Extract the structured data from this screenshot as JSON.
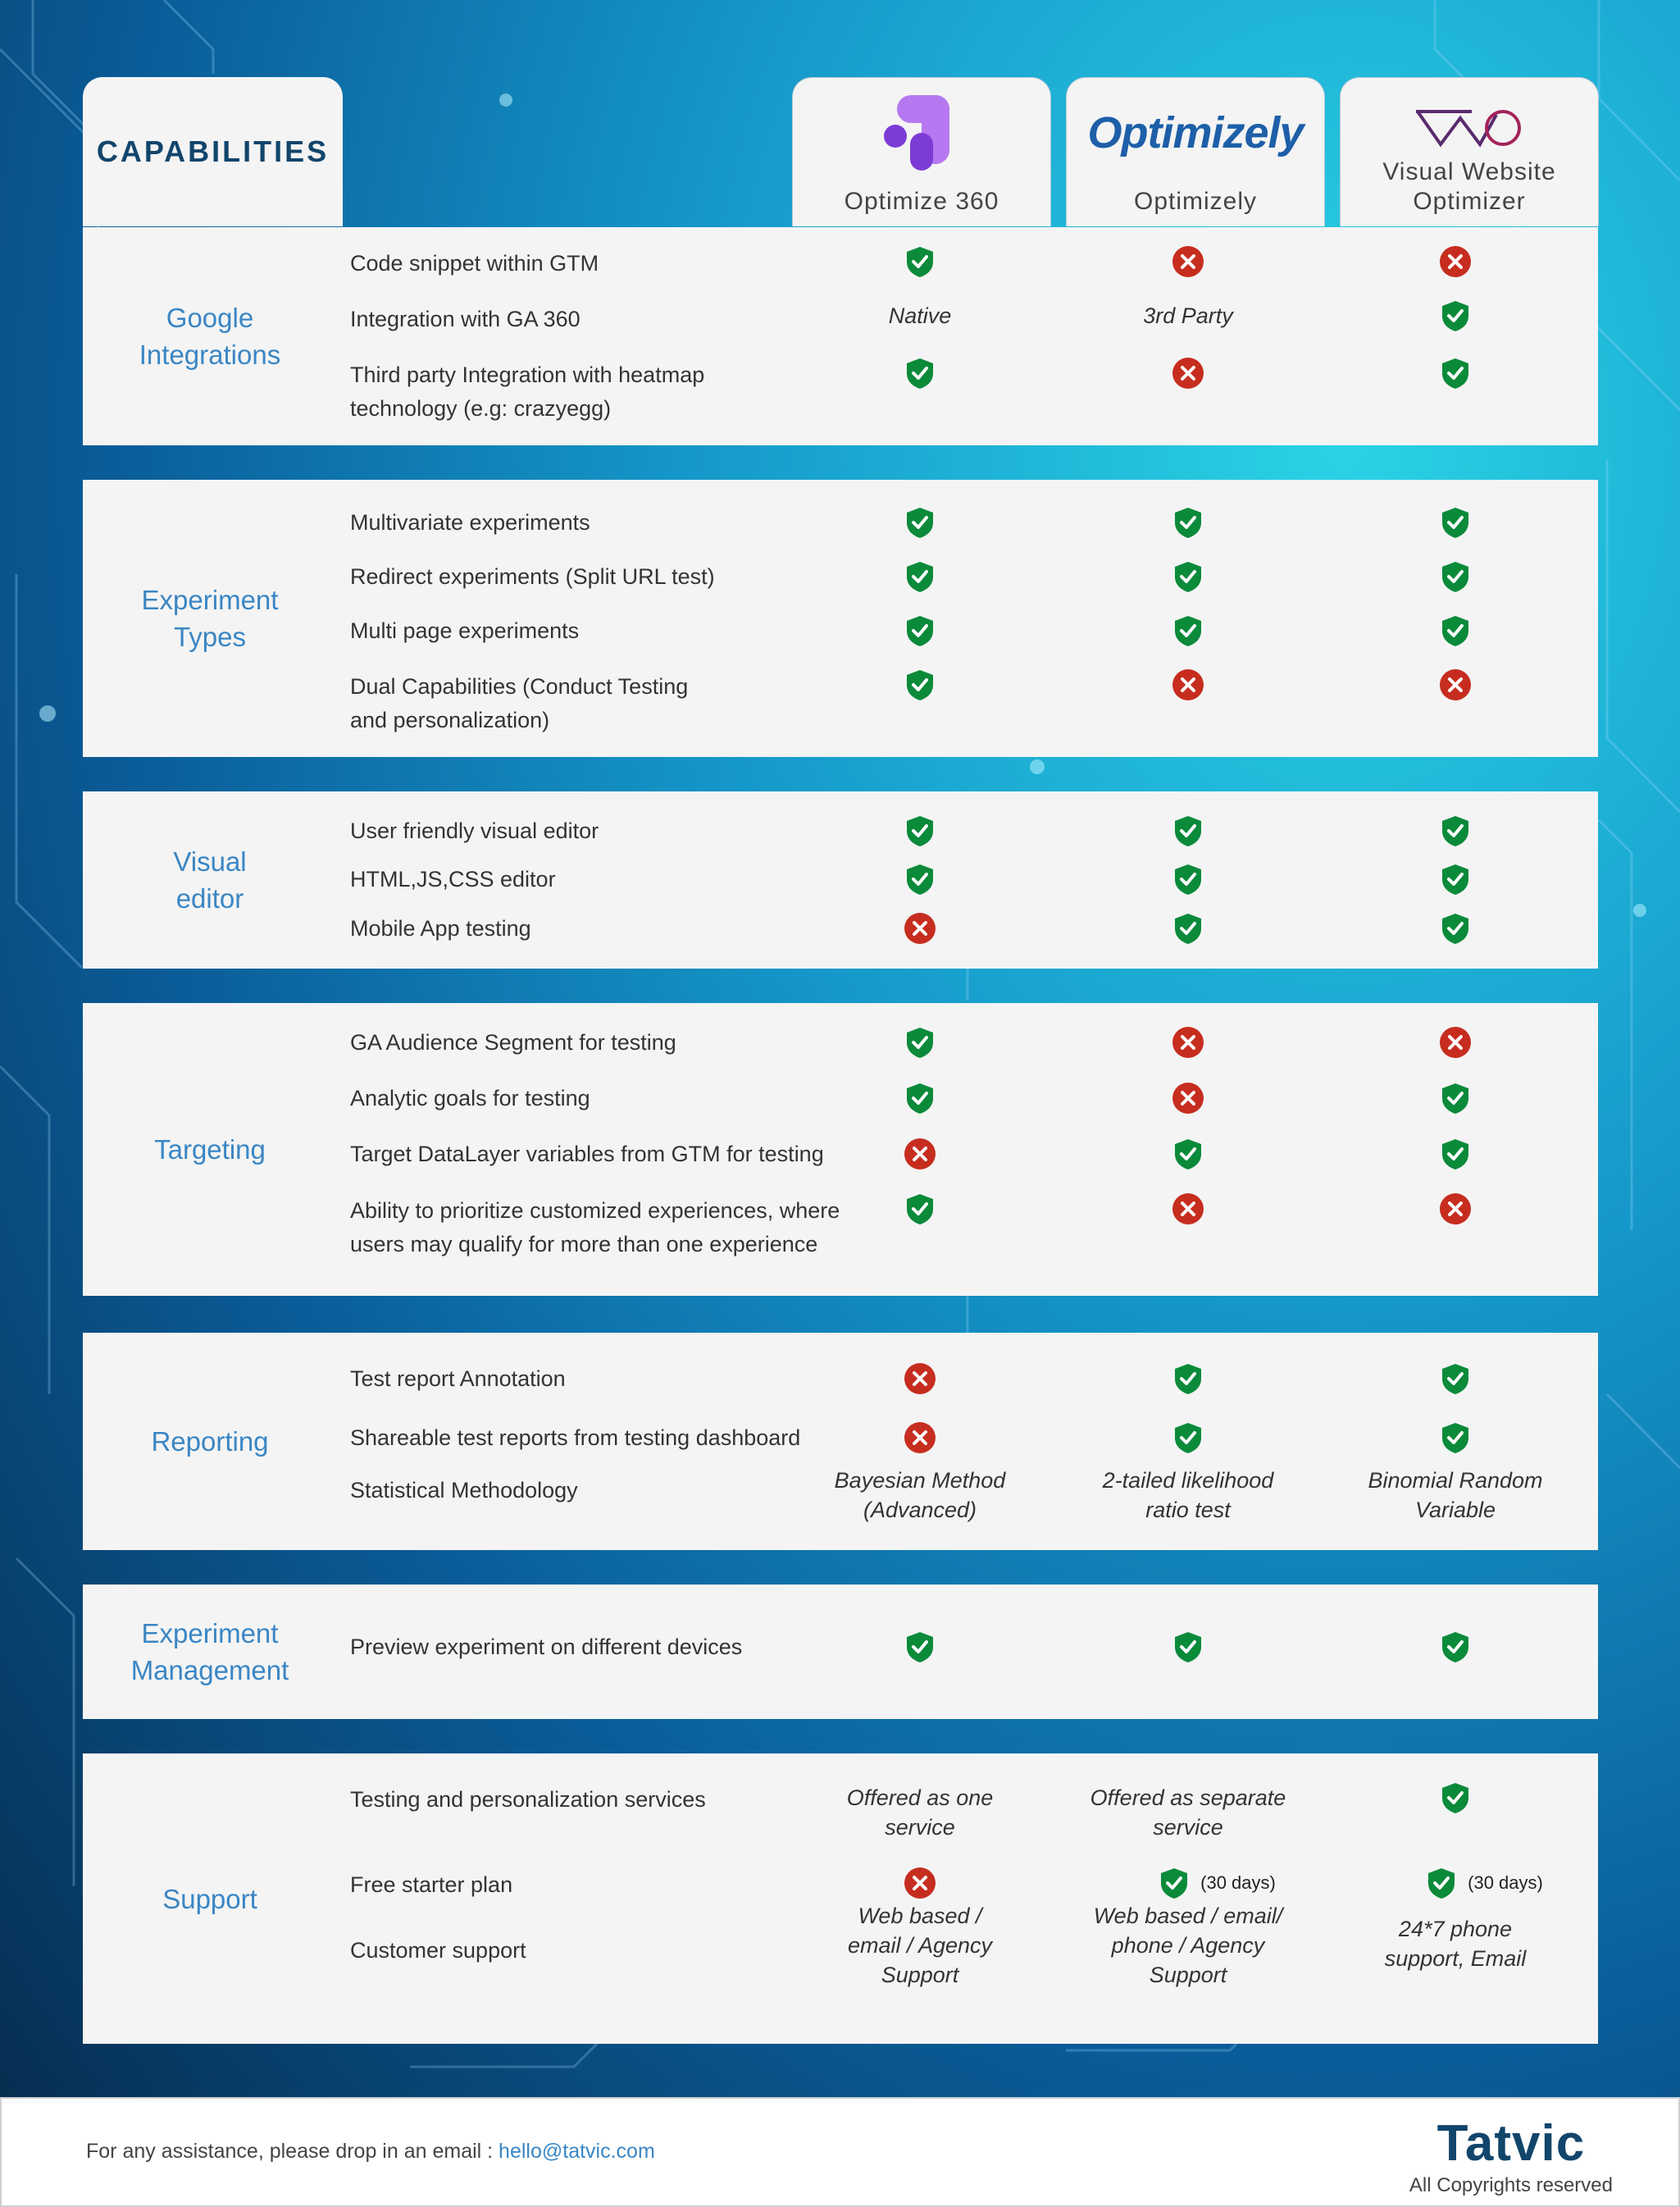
{
  "header": {
    "capabilities_label": "CAPABILITIES",
    "tools": [
      {
        "name": "Optimize 360",
        "logo": "optimize-360-logo"
      },
      {
        "name": "Optimizely",
        "logo_text": "Optimizely"
      },
      {
        "name": "Visual Website Optimizer",
        "logo": "vwo-logo"
      }
    ]
  },
  "colors": {
    "check": "#0b8a3a",
    "cross": "#c62d1f",
    "category_text": "#3a86c4",
    "title_text": "#12456b"
  },
  "sections": [
    {
      "category": "Google Integrations",
      "rows": [
        {
          "feature": "Code snippet within GTM",
          "values": [
            "check",
            "cross",
            "cross"
          ]
        },
        {
          "feature": "Integration with GA 360",
          "values": [
            "Native",
            "3rd Party",
            "check"
          ]
        },
        {
          "feature": "Third party Integration with heatmap technology (e.g: crazyegg)",
          "values": [
            "check",
            "cross",
            "check"
          ]
        }
      ]
    },
    {
      "category": "Experiment Types",
      "rows": [
        {
          "feature": "Multivariate experiments",
          "values": [
            "check",
            "check",
            "check"
          ]
        },
        {
          "feature": "Redirect experiments (Split URL test)",
          "values": [
            "check",
            "check",
            "check"
          ]
        },
        {
          "feature": "Multi page experiments",
          "values": [
            "check",
            "check",
            "check"
          ]
        },
        {
          "feature": "Dual Capabilities (Conduct Testing and personalization)",
          "values": [
            "check",
            "cross",
            "cross"
          ]
        }
      ]
    },
    {
      "category": "Visual editor",
      "rows": [
        {
          "feature": "User friendly visual editor",
          "values": [
            "check",
            "check",
            "check"
          ]
        },
        {
          "feature": "HTML,JS,CSS editor",
          "values": [
            "check",
            "check",
            "check"
          ]
        },
        {
          "feature": "Mobile App testing",
          "values": [
            "cross",
            "check",
            "check"
          ]
        }
      ]
    },
    {
      "category": "Targeting",
      "rows": [
        {
          "feature": "GA Audience Segment for testing",
          "values": [
            "check",
            "cross",
            "cross"
          ]
        },
        {
          "feature": "Analytic goals for testing",
          "values": [
            "check",
            "cross",
            "check"
          ]
        },
        {
          "feature": "Target DataLayer variables from GTM for testing",
          "values": [
            "cross",
            "check",
            "check"
          ]
        },
        {
          "feature": "Ability to prioritize customized experiences, where users may qualify for more than one experience",
          "values": [
            "check",
            "cross",
            "cross"
          ]
        }
      ]
    },
    {
      "category": "Reporting",
      "rows": [
        {
          "feature": "Test report Annotation",
          "values": [
            "cross",
            "check",
            "check"
          ]
        },
        {
          "feature": "Shareable test reports from testing dashboard",
          "values": [
            "cross",
            "check",
            "check"
          ]
        },
        {
          "feature": "Statistical Methodology",
          "values": [
            "Bayesian Method (Advanced)",
            "2-tailed likelihood ratio test",
            "Binomial Random Variable"
          ]
        }
      ]
    },
    {
      "category": "Experiment Management",
      "rows": [
        {
          "feature": "Preview experiment on different devices",
          "values": [
            "check",
            "check",
            "check"
          ]
        }
      ]
    },
    {
      "category": "Support",
      "rows": [
        {
          "feature": "Testing and personalization services",
          "values": [
            "Offered as one service",
            "Offered as separate service",
            "check"
          ]
        },
        {
          "feature": "Free starter plan",
          "values": [
            "cross",
            "check",
            "check"
          ],
          "notes": [
            "",
            "(30 days)",
            "(30 days)"
          ]
        },
        {
          "feature": "Customer support",
          "values": [
            "Web based / email / Agency Support",
            "Web based / email/ phone / Agency Support",
            "24*7 phone support, Email"
          ]
        }
      ]
    }
  ],
  "footer": {
    "text": "For any assistance, please drop in an email :",
    "email": "hello@tatvic.com",
    "brand": "Tatvic",
    "copyright": "All Copyrights reserved"
  }
}
